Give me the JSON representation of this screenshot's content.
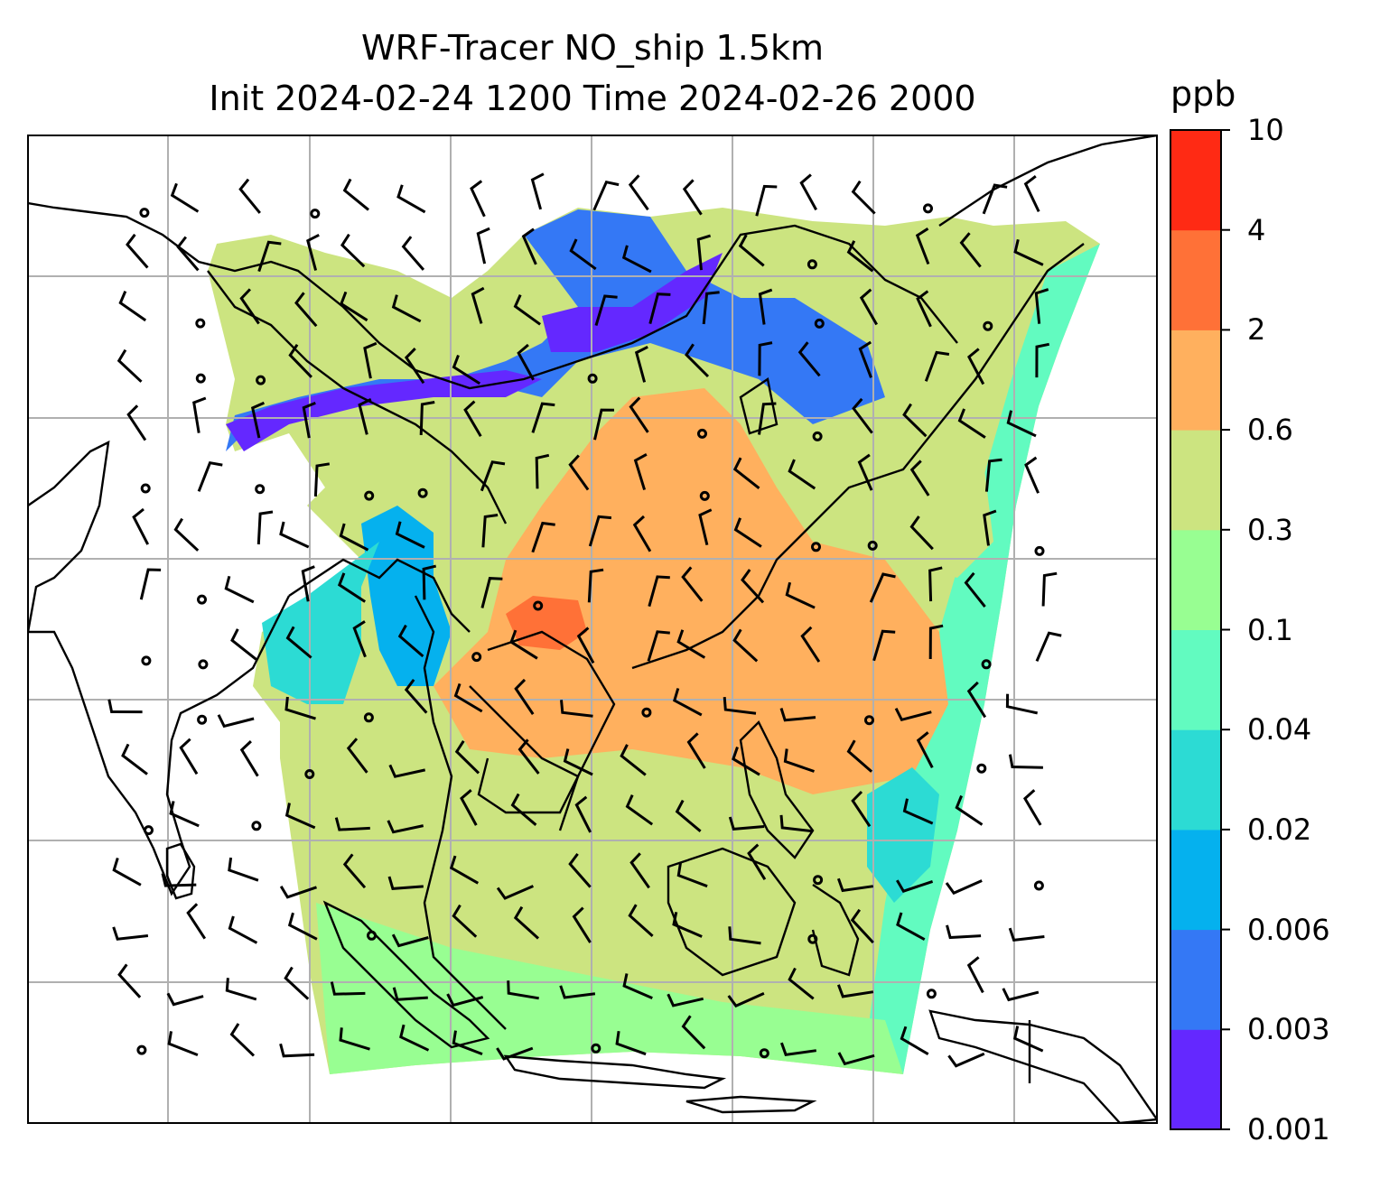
{
  "title": {
    "line1": "WRF-Tracer NO_ship 1.5km",
    "line2": "Init 2024-02-24 1200 Time 2024-02-26 2000"
  },
  "colorbar": {
    "unit": "ppb",
    "levels": [
      "0.001",
      "0.003",
      "0.006",
      "0.02",
      "0.04",
      "0.1",
      "0.3",
      "0.6",
      "2",
      "4",
      "10"
    ],
    "colors": [
      "#6428ff",
      "#3478f5",
      "#05b1ee",
      "#2cdbd4",
      "#62fbc0",
      "#98fe92",
      "#cce480",
      "#ffb05e",
      "#ff7137",
      "#ff2a14"
    ]
  },
  "map": {
    "gridlines": true,
    "field_color_background": "#cce480",
    "coastline_color": "#000000",
    "grid_color": "#b0b0b0"
  }
}
